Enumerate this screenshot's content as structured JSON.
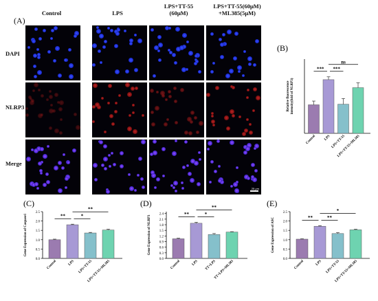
{
  "figure": {
    "panel_a_label": "(A)",
    "columns": [
      "Control",
      "LPS",
      "LPS+TT-55\n(60μM)",
      "LPS+TT-55(60μM)\n+ML385(5μM)"
    ],
    "rows": [
      "DAPI",
      "NLRP3",
      "Merge"
    ],
    "scale_label": "25 μm"
  },
  "chart_data": [
    {
      "panel": "(B)",
      "type": "bar",
      "ylabel": "Relative fluorescence\nintensity(fold of NLRP3)",
      "categories": [
        "Control",
        "LPS",
        "LPS+TT-55",
        "LPS+TT-55+ML385"
      ],
      "values": [
        1.0,
        1.88,
        1.02,
        1.6
      ],
      "errors": [
        0.13,
        0.1,
        0.2,
        0.17
      ],
      "ylim": [
        0,
        2.6
      ],
      "colors": [
        "#9b7bb0",
        "#a799d5",
        "#85c0cb",
        "#6ed3b0"
      ],
      "yticks": [],
      "brackets": [
        {
          "from": 0,
          "to": 1,
          "label": "***",
          "level": 0
        },
        {
          "from": 1,
          "to": 2,
          "label": "***",
          "level": 0
        },
        {
          "from": 1,
          "to": 3,
          "label": "ns",
          "level": 1
        }
      ]
    },
    {
      "panel": "(C)",
      "type": "bar",
      "ylabel": "Gene Expression of Caspase1",
      "categories": [
        "Control",
        "LPS",
        "LPS+TT-55",
        "LPS+TT-55+ML385"
      ],
      "values": [
        1.0,
        1.8,
        1.36,
        1.52
      ],
      "errors": [
        0.03,
        0.03,
        0.03,
        0.04
      ],
      "ylim": [
        0,
        2.5
      ],
      "yticks": [
        0.0,
        0.5,
        1.0,
        1.5,
        2.0,
        2.5
      ],
      "colors": [
        "#9b7bb0",
        "#a799d5",
        "#85c0cb",
        "#6ed3b0"
      ],
      "brackets": [
        {
          "from": 0,
          "to": 1,
          "label": "**",
          "level": 0
        },
        {
          "from": 1,
          "to": 2,
          "label": "*",
          "level": 0
        },
        {
          "from": 1,
          "to": 3,
          "label": "**",
          "level": 1
        }
      ]
    },
    {
      "panel": "(D)",
      "type": "bar",
      "ylabel": "Gene Expression of NLRP3",
      "categories": [
        "Control",
        "LPS",
        "TT+LPS",
        "TT+LPS+ML385"
      ],
      "values": [
        1.05,
        1.88,
        1.28,
        1.41
      ],
      "errors": [
        0.03,
        0.05,
        0.05,
        0.02
      ],
      "ylim": [
        0,
        2.5
      ],
      "yticks": [
        0.0,
        0.3,
        0.6,
        0.9,
        1.2,
        1.5,
        1.8,
        2.1,
        2.4
      ],
      "colors": [
        "#9b7bb0",
        "#a799d5",
        "#85c0cb",
        "#6ed3b0"
      ],
      "brackets": [
        {
          "from": 0,
          "to": 1,
          "label": "**",
          "level": 0
        },
        {
          "from": 1,
          "to": 2,
          "label": "*",
          "level": 0
        },
        {
          "from": 1,
          "to": 3,
          "label": "**",
          "level": 1
        }
      ]
    },
    {
      "panel": "(E)",
      "type": "bar",
      "ylabel": "Gene Expression of ASC",
      "categories": [
        "Control",
        "LPS",
        "LPS+TT-55",
        "LPS+TT-55+ML385"
      ],
      "values": [
        1.03,
        1.72,
        1.33,
        1.53
      ],
      "errors": [
        0.02,
        0.03,
        0.05,
        0.03
      ],
      "ylim": [
        0,
        2.5
      ],
      "yticks": [
        0.0,
        0.5,
        1.0,
        1.5,
        2.0,
        2.5
      ],
      "colors": [
        "#9b7bb0",
        "#a799d5",
        "#85c0cb",
        "#6ed3b0"
      ],
      "brackets": [
        {
          "from": 0,
          "to": 1,
          "label": "**",
          "level": 0
        },
        {
          "from": 1,
          "to": 2,
          "label": "**",
          "level": 0
        },
        {
          "from": 1,
          "to": 3,
          "label": "*",
          "level": 1
        }
      ]
    }
  ]
}
